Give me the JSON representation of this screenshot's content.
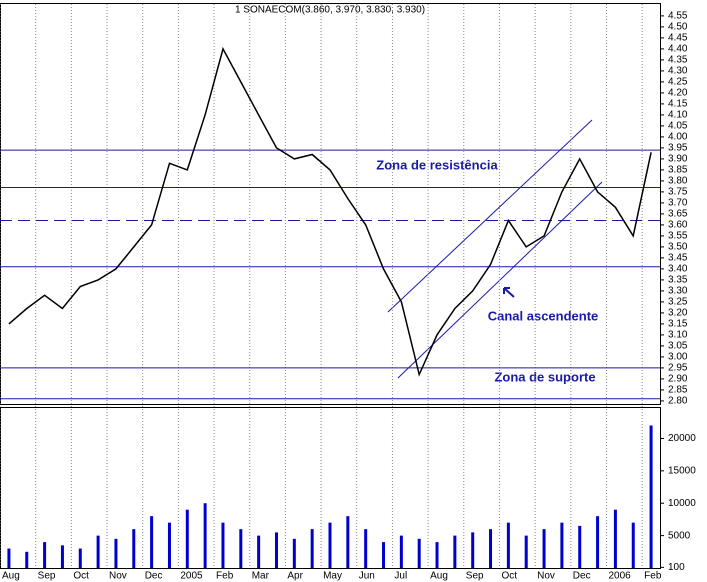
{
  "chart_data": [
    {
      "type": "line",
      "title": "1 SONAECOM(3.860, 3.970, 3.830, 3.930)",
      "categories": [
        "Aug",
        null,
        "Sep",
        null,
        "Oct",
        null,
        "Nov",
        null,
        "Dec",
        null,
        "2005",
        null,
        "Feb",
        null,
        "Mar",
        null,
        "Apr",
        null,
        "May",
        null,
        "Jun",
        null,
        "Jul",
        null,
        "Aug",
        null,
        "Sep",
        null,
        "Oct",
        null,
        "Nov",
        null,
        "Dec",
        null,
        "2006",
        null,
        "Feb"
      ],
      "series": [
        {
          "name": "SONAECOM",
          "color": "#000000",
          "values": [
            3.15,
            3.22,
            3.28,
            3.22,
            3.32,
            3.35,
            3.4,
            3.5,
            3.6,
            3.88,
            3.85,
            4.1,
            4.4,
            4.25,
            4.1,
            3.95,
            3.9,
            3.92,
            3.85,
            3.72,
            3.6,
            3.4,
            3.25,
            2.92,
            3.1,
            3.22,
            3.3,
            3.42,
            3.62,
            3.5,
            3.55,
            3.75,
            3.9,
            3.75,
            3.68,
            3.55,
            3.93
          ]
        }
      ],
      "ylim": [
        2.786,
        4.604
      ],
      "yticks": [
        {
          "value": 2.8,
          "label": "2.80"
        },
        2.85,
        {
          "value": 2.9,
          "label": "2.90"
        },
        2.95,
        {
          "value": 3.0,
          "label": "3.00"
        },
        3.05,
        {
          "value": 3.1,
          "label": "3.10"
        },
        3.15,
        {
          "value": 3.2,
          "label": "3.20"
        },
        3.25,
        {
          "value": 3.3,
          "label": "3.30"
        },
        3.35,
        {
          "value": 3.4,
          "label": "3.40"
        },
        3.45,
        {
          "value": 3.5,
          "label": "3.50"
        },
        3.55,
        {
          "value": 3.6,
          "label": "3.60"
        },
        3.65,
        {
          "value": 3.7,
          "label": "3.70"
        },
        3.75,
        {
          "value": 3.8,
          "label": "3.80"
        },
        3.85,
        {
          "value": 3.9,
          "label": "3.90"
        },
        3.95,
        {
          "value": 4.0,
          "label": "4.00"
        },
        4.05,
        {
          "value": 4.1,
          "label": "4.10"
        },
        4.15,
        {
          "value": 4.2,
          "label": "4.20"
        },
        4.25,
        {
          "value": 4.3,
          "label": "4.30"
        },
        4.35,
        {
          "value": 4.4,
          "label": "4.40"
        },
        4.45,
        {
          "value": 4.5,
          "label": "4.50"
        },
        4.55
      ],
      "levels": [
        3.94,
        3.77,
        3.41,
        2.95,
        2.81
      ],
      "dashed_levels": [
        3.62
      ],
      "level_color": "#1a1aa8",
      "annotations": [
        "Zona de resistência",
        "Canal ascendente",
        "Zona de suporte"
      ]
    },
    {
      "type": "bar",
      "color": "#0000cc",
      "values": [
        3000,
        2500,
        4000,
        3500,
        3000,
        5000,
        4500,
        6000,
        8000,
        7000,
        9000,
        10000,
        7000,
        6000,
        5000,
        5500,
        4500,
        6000,
        7000,
        8000,
        6000,
        4000,
        5000,
        4500,
        4000,
        5000,
        5500,
        6000,
        7000,
        5000,
        6000,
        7000,
        6500,
        8000,
        9000,
        7000,
        22000
      ],
      "ylim": [
        0,
        24700
      ],
      "yticks": [
        100,
        5000,
        10000,
        15000,
        20000
      ]
    }
  ]
}
